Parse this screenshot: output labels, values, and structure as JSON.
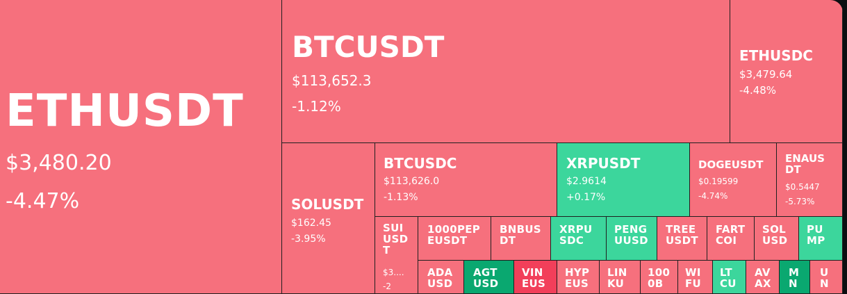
{
  "tiles": {
    "ethusdt": {
      "symbol": "ETHUSDT",
      "price": "$3,480.20",
      "change": "-4.47%"
    },
    "btcusdt": {
      "symbol": "BTCUSDT",
      "price": "$113,652.3",
      "change": "-1.12%"
    },
    "ethusdc": {
      "symbol": "ETHUSDC",
      "price": "$3,479.64",
      "change": "-4.48%"
    },
    "solusdt": {
      "symbol": "SOLUSDT",
      "price": "$162.45",
      "change": "-3.95%"
    },
    "btcusdc": {
      "symbol": "BTCUSDC",
      "price": "$113,626.0",
      "change": "-1.13%"
    },
    "xrpusdt": {
      "symbol": "XRPUSDT",
      "price": "$2.9614",
      "change": "+0.17%"
    },
    "dogeusdt": {
      "symbol": "DOGEUSDT",
      "price": "$0.19599",
      "change": "-4.74%"
    },
    "enausdt": {
      "symbol": "ENAUS DT",
      "price": "$0.5447",
      "change": "-5.73%"
    },
    "suiusdt": {
      "symbol": "SUI USD T",
      "price": "$3....",
      "change": "-2"
    },
    "pepe": {
      "symbol": "1000PEP EUSDT"
    },
    "bnbusdt": {
      "symbol": "BNBUS DT"
    },
    "xrpusdc": {
      "symbol": "XRPU SDC"
    },
    "penguusdt": {
      "symbol": "PENG UUSD"
    },
    "treeusdt": {
      "symbol": "TREE USDT"
    },
    "fartcoin": {
      "symbol": "FART COI"
    },
    "solusdc": {
      "symbol": "SOL USD"
    },
    "pump": {
      "symbol": "PU MP"
    },
    "ada": {
      "symbol": "ADA USD"
    },
    "agt": {
      "symbol": "AGT USD"
    },
    "vin": {
      "symbol": "VIN EUS"
    },
    "hyp": {
      "symbol": "HYP EUS"
    },
    "lin": {
      "symbol": "LIN KU"
    },
    "n100": {
      "symbol": "100 0B"
    },
    "wi": {
      "symbol": "WI FU"
    },
    "lt": {
      "symbol": "LT CU"
    },
    "av": {
      "symbol": "AV AX"
    },
    "m": {
      "symbol": "M N"
    },
    "u": {
      "symbol": "U N"
    }
  },
  "colors": {
    "negative": "#f6707d",
    "positive": "#3cd69c",
    "strong_negative": "#f23f5a",
    "strong_positive": "#0aa870",
    "background": "#0b0e11"
  }
}
